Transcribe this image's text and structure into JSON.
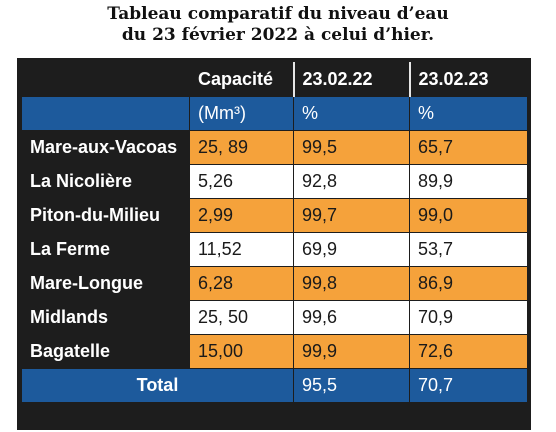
{
  "title": {
    "line1": "Tableau comparatif du niveau d’eau",
    "line2": "du 23 février 2022 à celui d’hier."
  },
  "header": {
    "col1": "",
    "col2": "Capacité",
    "col3": "23.02.22",
    "col4": "23.02.23"
  },
  "units": {
    "capacity": "(Mm³)",
    "pct1": "%",
    "pct2": "%"
  },
  "rows": [
    {
      "name": "Mare-aux-Vacoas",
      "capacity": "25, 89",
      "v2022": "99,5",
      "v2023": "65,7"
    },
    {
      "name": "La Nicolière",
      "capacity": "5,26",
      "v2022": "92,8",
      "v2023": "89,9"
    },
    {
      "name": "Piton-du-Milieu",
      "capacity": "2,99",
      "v2022": "99,7",
      "v2023": "99,0"
    },
    {
      "name": "La Ferme",
      "capacity": "11,52",
      "v2022": "69,9",
      "v2023": "53,7"
    },
    {
      "name": "Mare-Longue",
      "capacity": "6,28",
      "v2022": "99,8",
      "v2023": "86,9"
    },
    {
      "name": "Midlands",
      "capacity": "25, 50",
      "v2022": "99,6",
      "v2023": "70,9"
    },
    {
      "name": "Bagatelle",
      "capacity": "15,00",
      "v2022": "99,9",
      "v2023": "72,6"
    }
  ],
  "total": {
    "label": "Total",
    "v2022": "95,5",
    "v2023": "70,7"
  },
  "colors": {
    "header_bg": "#1d1d1d",
    "blue": "#1d5a9c",
    "orange": "#f5a23b",
    "white": "#ffffff"
  }
}
